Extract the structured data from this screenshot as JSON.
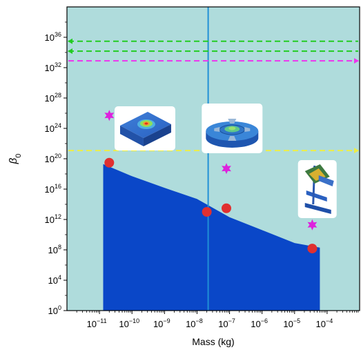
{
  "chart_data": {
    "type": "scatter",
    "title": "",
    "xlabel": "Mass (kg)",
    "ylabel_base": "β",
    "ylabel_sub": "0",
    "x_scale": "log",
    "y_scale": "log",
    "xlim": [
      1e-12,
      0.001
    ],
    "ylim": [
      1,
      1e+40
    ],
    "x_ticks": [
      {
        "base": "10",
        "exp": "−11",
        "value": 1e-11
      },
      {
        "base": "10",
        "exp": "−10",
        "value": 1e-10
      },
      {
        "base": "10",
        "exp": "−9",
        "value": 1e-09
      },
      {
        "base": "10",
        "exp": "−8",
        "value": 1e-08
      },
      {
        "base": "10",
        "exp": "−7",
        "value": 1e-07
      },
      {
        "base": "10",
        "exp": "−6",
        "value": 1e-06
      },
      {
        "base": "10",
        "exp": "−5",
        "value": 1e-05
      },
      {
        "base": "10",
        "exp": "−4",
        "value": 0.0001
      }
    ],
    "y_ticks": [
      {
        "base": "10",
        "exp": "0",
        "value": 1
      },
      {
        "base": "10",
        "exp": "4",
        "value": 10000.0
      },
      {
        "base": "10",
        "exp": "8",
        "value": 100000000.0
      },
      {
        "base": "10",
        "exp": "12",
        "value": 1000000000000.0
      },
      {
        "base": "10",
        "exp": "16",
        "value": 1e+16
      },
      {
        "base": "10",
        "exp": "20",
        "value": 1e+20
      },
      {
        "base": "10",
        "exp": "24",
        "value": 1e+24
      },
      {
        "base": "10",
        "exp": "28",
        "value": 1e+28
      },
      {
        "base": "10",
        "exp": "32",
        "value": 1e+32
      },
      {
        "base": "10",
        "exp": "36",
        "value": 1e+36
      }
    ],
    "background_region_color": "#afdcdc",
    "filled_region": {
      "color": "#0a47c8",
      "upper_boundary": [
        {
          "x": 1.3e-11,
          "y": 2e+19
        },
        {
          "x": 1e-10,
          "y": 5e+17
        },
        {
          "x": 1e-09,
          "y": 1.5e+16
        },
        {
          "x": 1e-08,
          "y": 500000000000000.0
        },
        {
          "x": 1e-07,
          "y": 2000000000000.0
        },
        {
          "x": 1e-06,
          "y": 40000000000.0
        },
        {
          "x": 1e-05,
          "y": 800000000.0
        },
        {
          "x": 6e-05,
          "y": 200000000.0
        }
      ]
    },
    "vertical_line": {
      "x": 2.2e-08,
      "color": "#1f8fd6"
    },
    "horizontal_lines": [
      {
        "y": 3e+35,
        "color": "#22cc22",
        "arrow": "left"
      },
      {
        "y": 1.5e+34,
        "color": "#22cc22",
        "arrow": "left"
      },
      {
        "y": 8e+32,
        "color": "#ee33ee",
        "arrow": "right"
      },
      {
        "y": 1.2e+21,
        "color": "#eeee44",
        "arrow": "right"
      }
    ],
    "series": [
      {
        "marker": "circle",
        "color": "#e03030",
        "points": [
          {
            "x": 2e-11,
            "y": 3e+19
          },
          {
            "x": 2e-08,
            "y": 10000000000000.0
          },
          {
            "x": 8e-08,
            "y": 30000000000000.0
          },
          {
            "x": 3.5e-05,
            "y": 150000000.0
          }
        ]
      },
      {
        "marker": "star",
        "color": "#dd22dd",
        "points": [
          {
            "x": 2e-11,
            "y": 5e+25
          },
          {
            "x": 8e-08,
            "y": 5e+18
          },
          {
            "x": 3.5e-05,
            "y": 200000000000.0
          }
        ]
      }
    ],
    "inset_images": [
      {
        "icon": "square-membrane-resonator-icon",
        "x": 2.5e-10,
        "y": 1e+24
      },
      {
        "icon": "circular-disk-resonator-icon",
        "x": 1.2e-07,
        "y": 1e+24
      },
      {
        "icon": "cantilever-oscillator-icon",
        "x": 5e-05,
        "y": 1e+16
      }
    ]
  }
}
